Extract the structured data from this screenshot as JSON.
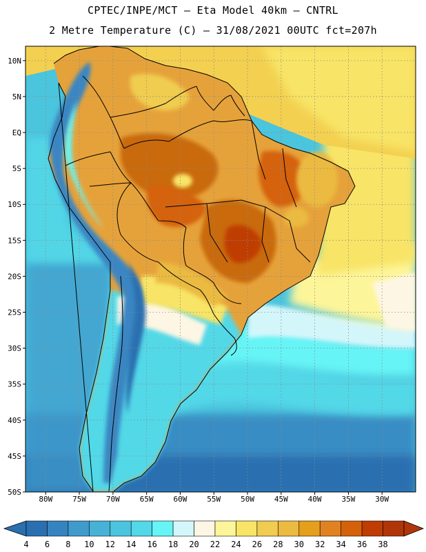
{
  "header": {
    "line1": "CPTEC/INPE/MCT –  Eta Model 40km – CNTRL",
    "line2": "2 Metre Temperature (C) – 31/08/2021 00UTC fct=207h"
  },
  "axes": {
    "lat_labels": [
      "10N",
      "5N",
      "EQ",
      "5S",
      "10S",
      "15S",
      "20S",
      "25S",
      "30S",
      "35S",
      "40S",
      "45S",
      "50S"
    ],
    "lon_labels": [
      "80W",
      "75W",
      "70W",
      "65W",
      "60W",
      "55W",
      "50W",
      "45W",
      "40W",
      "35W",
      "30W"
    ]
  },
  "colorbar": {
    "labels": [
      "4",
      "6",
      "8",
      "10",
      "12",
      "14",
      "16",
      "18",
      "20",
      "22",
      "24",
      "26",
      "28",
      "30",
      "32",
      "34",
      "36",
      "38"
    ],
    "colors": [
      "#2a6fb0",
      "#3584c0",
      "#3f9bcc",
      "#47b2d6",
      "#4bc4dd",
      "#52d8e8",
      "#66f4f6",
      "#d3f6fb",
      "#fdf6e4",
      "#fdf59a",
      "#f8e466",
      "#f0cc50",
      "#ebba40",
      "#e69f1c",
      "#e08222",
      "#d5620a",
      "#bf3c02",
      "#b0360a"
    ]
  },
  "map": {
    "ocean_color": "#4bc4dd",
    "north_atlantic_color": "#f3d050",
    "hot_core_color": "#c96a10",
    "warm_land_color": "#e6a23a",
    "andes_color": "#3a86c2",
    "border_color": "#000000"
  }
}
